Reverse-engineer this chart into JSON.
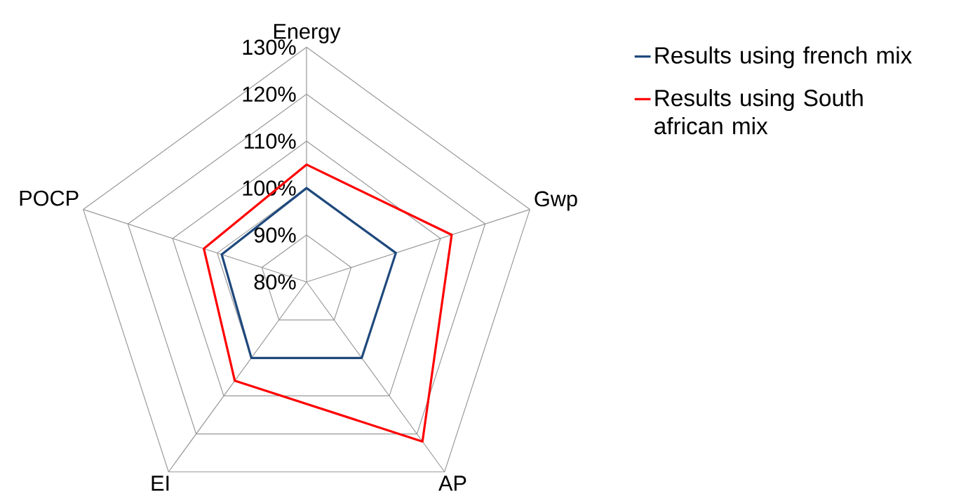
{
  "chart_data": {
    "type": "radar",
    "categories": [
      "Energy",
      "Gwp",
      "AP",
      "EI",
      "POCP"
    ],
    "series": [
      {
        "name": "Results using french mix",
        "color": "#1f497d",
        "values": [
          100,
          100,
          100,
          100,
          99
        ]
      },
      {
        "name": "Results using South african mix",
        "color": "#ff0000",
        "values": [
          105,
          112.5,
          122,
          106,
          103
        ]
      }
    ],
    "ylim": [
      80,
      130
    ],
    "yticks": [
      {
        "value": 80,
        "label": "80%"
      },
      {
        "value": 90,
        "label": "90%"
      },
      {
        "value": 100,
        "label": "100%"
      },
      {
        "value": 110,
        "label": "110%"
      },
      {
        "value": 120,
        "label": "120%"
      },
      {
        "value": 130,
        "label": "130%"
      }
    ],
    "grid": true,
    "legend": "right",
    "marker": "none",
    "line_style": "solid"
  }
}
